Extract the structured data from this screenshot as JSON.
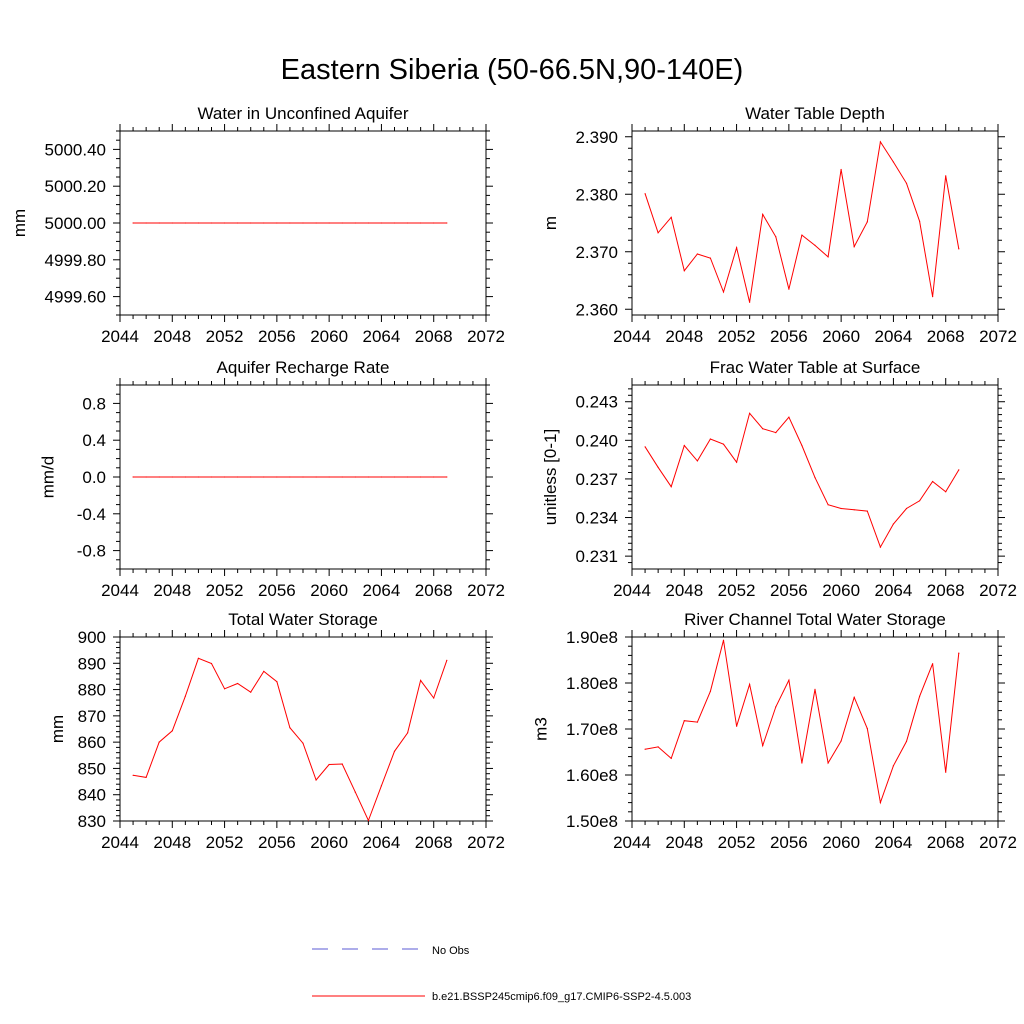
{
  "figure_title": "Eastern Siberia (50-66.5N,90-140E)",
  "legend": [
    {
      "label": "No Obs",
      "color": "#5b5bd6",
      "style": "dashed"
    },
    {
      "label": "b.e21.BSSP245cmip6.f09_g17.CMIP6-SSP2-4.5.003",
      "color": "#ff0000",
      "style": "solid"
    }
  ],
  "chart_data": [
    {
      "type": "line",
      "title": "Water in Unconfined Aquifer",
      "ylabel": "mm",
      "xlim": [
        2044,
        2072
      ],
      "xticks": [
        "2044",
        "2048",
        "2052",
        "2056",
        "2060",
        "2064",
        "2068",
        "2072"
      ],
      "ylim": [
        4999.5,
        5000.5
      ],
      "yticks": [
        {
          "v": 4999.6,
          "t": "4999.60"
        },
        {
          "v": 4999.8,
          "t": "4999.80"
        },
        {
          "v": 5000.0,
          "t": "5000.00"
        },
        {
          "v": 5000.2,
          "t": "5000.20"
        },
        {
          "v": 5000.4,
          "t": "5000.40"
        }
      ],
      "yminor": [
        4999.5,
        4999.55,
        4999.65,
        4999.7,
        4999.75,
        4999.85,
        4999.9,
        4999.95,
        5000.05,
        5000.1,
        5000.15,
        5000.25,
        5000.3,
        5000.35,
        5000.45,
        5000.5
      ],
      "series": [
        {
          "color": "#ff0000",
          "x": [
            2045,
            2046,
            2047,
            2048,
            2049,
            2050,
            2051,
            2052,
            2053,
            2054,
            2055,
            2056,
            2057,
            2058,
            2059,
            2060,
            2061,
            2062,
            2063,
            2064,
            2065,
            2066,
            2067,
            2068,
            2069
          ],
          "y": [
            5000,
            5000,
            5000,
            5000,
            5000,
            5000,
            5000,
            5000,
            5000,
            5000,
            5000,
            5000,
            5000,
            5000,
            5000,
            5000,
            5000,
            5000,
            5000,
            5000,
            5000,
            5000,
            5000,
            5000,
            5000
          ]
        }
      ]
    },
    {
      "type": "line",
      "title": "Water Table Depth",
      "ylabel": "m",
      "xlim": [
        2044,
        2072
      ],
      "xticks": [
        "2044",
        "2048",
        "2052",
        "2056",
        "2060",
        "2064",
        "2068",
        "2072"
      ],
      "ylim": [
        2.359,
        2.391
      ],
      "yticks": [
        {
          "v": 2.36,
          "t": "2.360"
        },
        {
          "v": 2.37,
          "t": "2.370"
        },
        {
          "v": 2.38,
          "t": "2.380"
        },
        {
          "v": 2.39,
          "t": "2.390"
        }
      ],
      "yminor": [
        2.362,
        2.364,
        2.366,
        2.368,
        2.372,
        2.374,
        2.376,
        2.378,
        2.382,
        2.384,
        2.386,
        2.388
      ],
      "series": [
        {
          "color": "#ff0000",
          "x": [
            2045,
            2046,
            2047,
            2048,
            2049,
            2050,
            2051,
            2052,
            2053,
            2054,
            2055,
            2056,
            2057,
            2058,
            2059,
            2060,
            2061,
            2062,
            2063,
            2064,
            2065,
            2066,
            2067,
            2068,
            2069
          ],
          "y": [
            2.3801,
            2.3733,
            2.376,
            2.3667,
            2.3696,
            2.3689,
            2.363,
            2.3707,
            2.3612,
            2.3765,
            2.3726,
            2.3635,
            2.3729,
            2.3711,
            2.3691,
            2.3843,
            2.3709,
            2.3752,
            2.3891,
            2.3856,
            2.3819,
            2.3753,
            2.3622,
            2.3832,
            2.3705
          ]
        }
      ]
    },
    {
      "type": "line",
      "title": "Aquifer Recharge Rate",
      "ylabel": "mm/d",
      "xlim": [
        2044,
        2072
      ],
      "xticks": [
        "2044",
        "2048",
        "2052",
        "2056",
        "2060",
        "2064",
        "2068",
        "2072"
      ],
      "ylim": [
        -1.0,
        1.0
      ],
      "yticks": [
        {
          "v": -0.8,
          "t": "-0.8"
        },
        {
          "v": -0.4,
          "t": "-0.4"
        },
        {
          "v": 0.0,
          "t": "0.0"
        },
        {
          "v": 0.4,
          "t": "0.4"
        },
        {
          "v": 0.8,
          "t": "0.8"
        }
      ],
      "yminor": [
        -1.0,
        -0.9,
        -0.7,
        -0.6,
        -0.5,
        -0.3,
        -0.2,
        -0.1,
        0.1,
        0.2,
        0.3,
        0.5,
        0.6,
        0.7,
        0.9,
        1.0
      ],
      "series": [
        {
          "color": "#ff0000",
          "x": [
            2045,
            2046,
            2047,
            2048,
            2049,
            2050,
            2051,
            2052,
            2053,
            2054,
            2055,
            2056,
            2057,
            2058,
            2059,
            2060,
            2061,
            2062,
            2063,
            2064,
            2065,
            2066,
            2067,
            2068,
            2069
          ],
          "y": [
            0,
            0,
            0,
            0,
            0,
            0,
            0,
            0,
            0,
            0,
            0,
            0,
            0,
            0,
            0,
            0,
            0,
            0,
            0,
            0,
            0,
            0,
            0,
            0,
            0
          ]
        }
      ]
    },
    {
      "type": "line",
      "title": "Frac Water Table at Surface",
      "ylabel": "unitless [0-1]",
      "xlim": [
        2044,
        2072
      ],
      "xticks": [
        "2044",
        "2048",
        "2052",
        "2056",
        "2060",
        "2064",
        "2068",
        "2072"
      ],
      "ylim": [
        0.23,
        0.2443
      ],
      "yticks": [
        {
          "v": 0.231,
          "t": "0.231"
        },
        {
          "v": 0.234,
          "t": "0.234"
        },
        {
          "v": 0.237,
          "t": "0.237"
        },
        {
          "v": 0.24,
          "t": "0.240"
        },
        {
          "v": 0.243,
          "t": "0.243"
        }
      ],
      "yminor": [
        0.2305,
        0.2315,
        0.232,
        0.2325,
        0.233,
        0.2335,
        0.2345,
        0.235,
        0.2355,
        0.236,
        0.2365,
        0.2375,
        0.238,
        0.2385,
        0.239,
        0.2395,
        0.2405,
        0.241,
        0.2415,
        0.242,
        0.2425,
        0.2435,
        0.244
      ],
      "series": [
        {
          "color": "#ff0000",
          "x": [
            2045,
            2046,
            2047,
            2048,
            2049,
            2050,
            2051,
            2052,
            2053,
            2054,
            2055,
            2056,
            2057,
            2058,
            2059,
            2060,
            2061,
            2062,
            2063,
            2064,
            2065,
            2066,
            2067,
            2068,
            2069
          ],
          "y": [
            0.2395,
            0.2379,
            0.2364,
            0.2396,
            0.2384,
            0.2401,
            0.2397,
            0.2383,
            0.2421,
            0.2409,
            0.2406,
            0.2418,
            0.2396,
            0.2371,
            0.235,
            0.2347,
            0.2346,
            0.2345,
            0.2317,
            0.2335,
            0.2347,
            0.2353,
            0.2368,
            0.236,
            0.2377
          ]
        }
      ]
    },
    {
      "type": "line",
      "title": "Total Water Storage",
      "ylabel": "mm",
      "xlim": [
        2044,
        2072
      ],
      "xticks": [
        "2044",
        "2048",
        "2052",
        "2056",
        "2060",
        "2064",
        "2068",
        "2072"
      ],
      "ylim": [
        830,
        900
      ],
      "yticks": [
        {
          "v": 830,
          "t": "830"
        },
        {
          "v": 840,
          "t": "840"
        },
        {
          "v": 850,
          "t": "850"
        },
        {
          "v": 860,
          "t": "860"
        },
        {
          "v": 870,
          "t": "870"
        },
        {
          "v": 880,
          "t": "880"
        },
        {
          "v": 890,
          "t": "890"
        },
        {
          "v": 900,
          "t": "900"
        }
      ],
      "yminor": [
        832,
        834,
        836,
        838,
        842,
        844,
        846,
        848,
        852,
        854,
        856,
        858,
        862,
        864,
        866,
        868,
        872,
        874,
        876,
        878,
        882,
        884,
        886,
        888,
        892,
        894,
        896,
        898
      ],
      "series": [
        {
          "color": "#ff0000",
          "x": [
            2045,
            2046,
            2047,
            2048,
            2049,
            2050,
            2051,
            2052,
            2053,
            2054,
            2055,
            2056,
            2057,
            2058,
            2059,
            2060,
            2061,
            2062,
            2063,
            2064,
            2065,
            2066,
            2067,
            2068,
            2069
          ],
          "y": [
            847.4,
            846.6,
            860.0,
            864.3,
            877.5,
            891.9,
            889.9,
            880.3,
            882.3,
            879.0,
            886.9,
            883.0,
            865.5,
            859.6,
            845.6,
            851.5,
            851.7,
            841.0,
            830.2,
            843.4,
            856.5,
            863.5,
            883.5,
            876.8,
            891.1
          ]
        }
      ]
    },
    {
      "type": "line",
      "title": "River Channel Total Water Storage",
      "ylabel": "m3",
      "xlim": [
        2044,
        2072
      ],
      "xticks": [
        "2044",
        "2048",
        "2052",
        "2056",
        "2060",
        "2064",
        "2068",
        "2072"
      ],
      "ylim": [
        150000000,
        190000000
      ],
      "yticks": [
        {
          "v": 150000000,
          "t": "1.50e8"
        },
        {
          "v": 160000000,
          "t": "1.60e8"
        },
        {
          "v": 170000000,
          "t": "1.70e8"
        },
        {
          "v": 180000000,
          "t": "1.80e8"
        },
        {
          "v": 190000000,
          "t": "1.90e8"
        }
      ],
      "yminor": [
        152000000,
        154000000,
        156000000,
        158000000,
        162000000,
        164000000,
        166000000,
        168000000,
        172000000,
        174000000,
        176000000,
        178000000,
        182000000,
        184000000,
        186000000,
        188000000
      ],
      "series": [
        {
          "color": "#ff0000",
          "x": [
            2045,
            2046,
            2047,
            2048,
            2049,
            2050,
            2051,
            2052,
            2053,
            2054,
            2055,
            2056,
            2057,
            2058,
            2059,
            2060,
            2061,
            2062,
            2063,
            2064,
            2065,
            2066,
            2067,
            2068,
            2069
          ],
          "y": [
            165600000,
            166100000,
            163600000,
            171800000,
            171500000,
            178200000,
            189300000,
            170600000,
            179700000,
            166400000,
            174800000,
            180600000,
            162600000,
            178600000,
            162600000,
            167400000,
            176900000,
            170100000,
            154000000,
            162000000,
            167300000,
            177100000,
            184200000,
            160600000,
            186500000
          ]
        }
      ]
    }
  ]
}
